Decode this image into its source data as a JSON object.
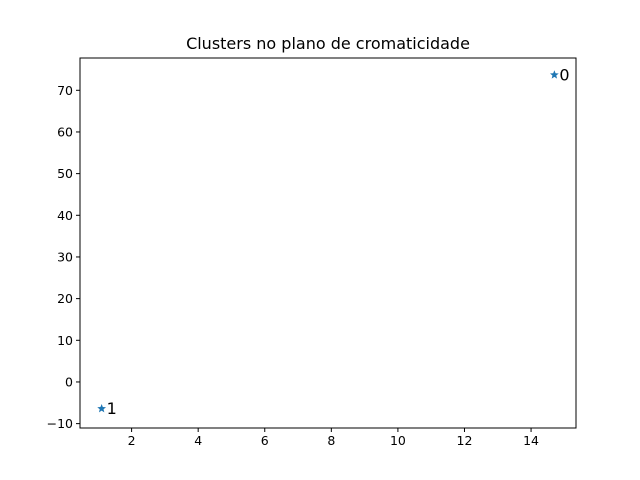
{
  "chart_data": {
    "type": "scatter",
    "title": "Clusters no plano de cromaticidade",
    "xlabel": "",
    "ylabel": "",
    "xlim": [
      0.45,
      15.35
    ],
    "ylim": [
      -11.05,
      77.75
    ],
    "xticks": [
      2,
      4,
      6,
      8,
      10,
      12,
      14
    ],
    "yticks": [
      -10,
      0,
      10,
      20,
      30,
      40,
      50,
      60,
      70
    ],
    "grid": false,
    "marker": "star",
    "color": "#1f77b4",
    "points": [
      {
        "label": "0",
        "x": 14.7,
        "y": 73.7
      },
      {
        "label": "1",
        "x": 1.1,
        "y": -6.4
      }
    ]
  }
}
